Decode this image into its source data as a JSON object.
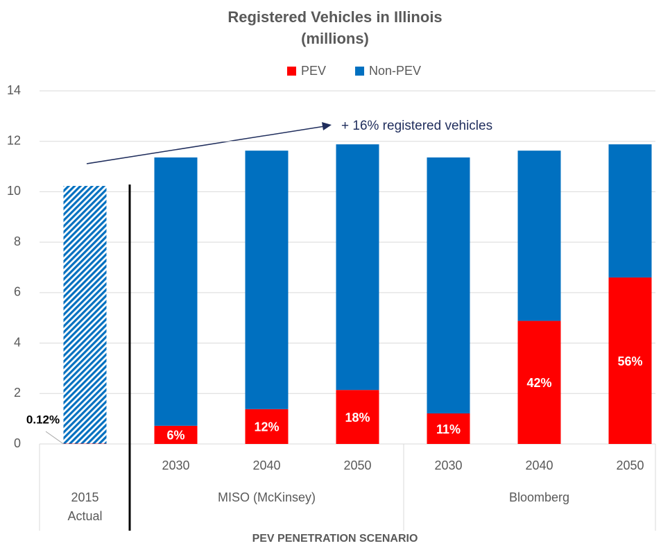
{
  "chart_data": {
    "type": "stacked_bar",
    "title": "Registered Vehicles in Illinois",
    "subtitle": "(millions)",
    "x_label": "PEV PENETRATION SCENARIO",
    "annotation": "+ 16% registered vehicles",
    "categories": [
      null,
      "2030",
      "2040",
      "2050",
      "2030",
      "2040",
      "2050"
    ],
    "groups": [
      "2015 Actual",
      "MISO (McKinsey)",
      "Bloomberg"
    ],
    "series": [
      {
        "name": "PEV",
        "color": "#ff0000",
        "values": [
          0.012,
          0.72,
          1.38,
          2.14,
          1.21,
          4.88,
          6.6
        ],
        "value_labels": [
          "0.12%",
          "6%",
          "12%",
          "18%",
          "11%",
          "42%",
          "56%"
        ]
      },
      {
        "name": "Non-PEV",
        "color": "#0070c0",
        "values": [
          10.22,
          10.64,
          10.25,
          9.74,
          10.15,
          6.75,
          5.28
        ],
        "hatched": [
          true,
          false,
          false,
          false,
          false,
          false,
          false
        ]
      }
    ],
    "ylim": [
      0,
      14
    ],
    "yticks": [
      0,
      2,
      4,
      6,
      8,
      10,
      12,
      14
    ],
    "grid": true,
    "legend": "top"
  }
}
